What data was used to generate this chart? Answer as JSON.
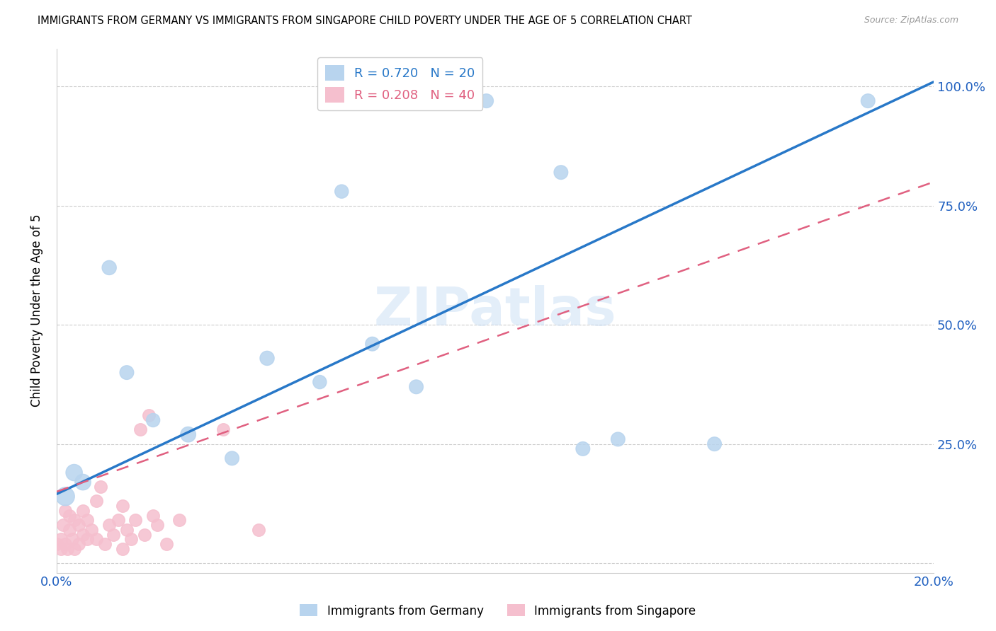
{
  "title": "IMMIGRANTS FROM GERMANY VS IMMIGRANTS FROM SINGAPORE CHILD POVERTY UNDER THE AGE OF 5 CORRELATION CHART",
  "source": "Source: ZipAtlas.com",
  "ylabel": "Child Poverty Under the Age of 5",
  "xlim": [
    0.0,
    0.2
  ],
  "ylim": [
    -0.02,
    1.08
  ],
  "germany_R": 0.72,
  "germany_N": 20,
  "singapore_R": 0.208,
  "singapore_N": 40,
  "germany_color": "#b8d4ee",
  "singapore_color": "#f5bfce",
  "germany_line_color": "#2878c8",
  "singapore_line_color": "#e06080",
  "watermark": "ZIPatlas",
  "germany_x": [
    0.002,
    0.004,
    0.006,
    0.012,
    0.016,
    0.022,
    0.03,
    0.04,
    0.048,
    0.06,
    0.065,
    0.072,
    0.082,
    0.088,
    0.098,
    0.115,
    0.12,
    0.128,
    0.15,
    0.185
  ],
  "germany_y": [
    0.14,
    0.19,
    0.17,
    0.62,
    0.4,
    0.3,
    0.27,
    0.22,
    0.43,
    0.38,
    0.78,
    0.46,
    0.37,
    0.97,
    0.97,
    0.82,
    0.24,
    0.26,
    0.25,
    0.97
  ],
  "germany_sizes": [
    350,
    280,
    260,
    210,
    200,
    190,
    240,
    200,
    210,
    190,
    190,
    200,
    200,
    200,
    200,
    200,
    200,
    200,
    200,
    200
  ],
  "singapore_x": [
    0.0,
    0.001,
    0.001,
    0.0015,
    0.002,
    0.002,
    0.0025,
    0.003,
    0.003,
    0.0035,
    0.004,
    0.004,
    0.005,
    0.005,
    0.006,
    0.006,
    0.007,
    0.007,
    0.008,
    0.009,
    0.009,
    0.01,
    0.011,
    0.012,
    0.013,
    0.014,
    0.015,
    0.015,
    0.016,
    0.017,
    0.018,
    0.019,
    0.02,
    0.021,
    0.022,
    0.023,
    0.025,
    0.028,
    0.038,
    0.046
  ],
  "singapore_y": [
    0.04,
    0.03,
    0.05,
    0.08,
    0.04,
    0.11,
    0.03,
    0.07,
    0.1,
    0.05,
    0.03,
    0.09,
    0.04,
    0.08,
    0.06,
    0.11,
    0.05,
    0.09,
    0.07,
    0.05,
    0.13,
    0.16,
    0.04,
    0.08,
    0.06,
    0.09,
    0.03,
    0.12,
    0.07,
    0.05,
    0.09,
    0.28,
    0.06,
    0.31,
    0.1,
    0.08,
    0.04,
    0.09,
    0.28,
    0.07
  ],
  "de_line_x0": 0.0,
  "de_line_y0": 0.145,
  "de_line_x1": 0.2,
  "de_line_y1": 1.01,
  "sg_line_x0": 0.0,
  "sg_line_y0": 0.15,
  "sg_line_x1": 0.2,
  "sg_line_y1": 0.8
}
